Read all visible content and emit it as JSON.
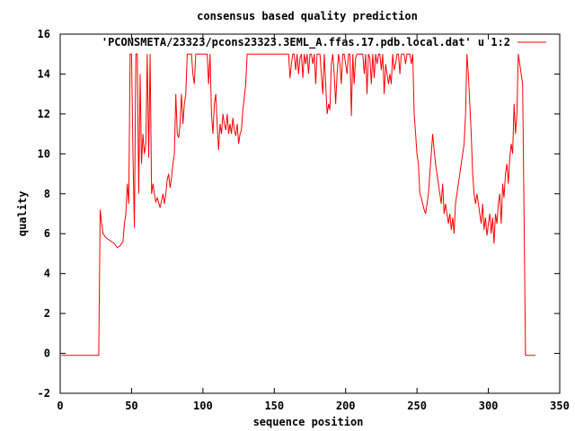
{
  "chart_data": {
    "type": "line",
    "title": "consensus based quality prediction",
    "xlabel": "sequence position",
    "ylabel": "quality",
    "xlim": [
      0,
      350
    ],
    "ylim": [
      -2,
      16
    ],
    "xticks": [
      "0",
      "50",
      "100",
      "150",
      "200",
      "250",
      "300",
      "350"
    ],
    "yticks": [
      "-2",
      "0",
      "2",
      "4",
      "6",
      "8",
      "10",
      "12",
      "14",
      "16"
    ],
    "grid": false,
    "legend_position": "top-right",
    "series": [
      {
        "name": "'PCONSMETA/23323/pcons23323.3EML_A.ffas.17.pdb.local.dat' u 1:2",
        "color": "#ff0000",
        "points": [
          [
            1,
            -0.1
          ],
          [
            27,
            -0.1
          ],
          [
            28,
            7.2
          ],
          [
            29,
            6.5
          ],
          [
            30,
            6.0
          ],
          [
            32,
            5.8
          ],
          [
            34,
            5.7
          ],
          [
            36,
            5.6
          ],
          [
            38,
            5.5
          ],
          [
            40,
            5.3
          ],
          [
            42,
            5.4
          ],
          [
            44,
            5.6
          ],
          [
            45,
            6.5
          ],
          [
            46,
            7.0
          ],
          [
            47,
            8.5
          ],
          [
            48,
            7.5
          ],
          [
            49,
            15.0
          ],
          [
            50,
            15.0
          ],
          [
            51,
            10.0
          ],
          [
            52,
            6.3
          ],
          [
            53,
            15.0
          ],
          [
            54,
            15.0
          ],
          [
            55,
            8.0
          ],
          [
            56,
            14.0
          ],
          [
            57,
            9.5
          ],
          [
            58,
            11.0
          ],
          [
            59,
            10.0
          ],
          [
            60,
            10.5
          ],
          [
            61,
            15.0
          ],
          [
            62,
            9.8
          ],
          [
            63,
            15.0
          ],
          [
            64,
            8.0
          ],
          [
            65,
            8.5
          ],
          [
            66,
            8.0
          ],
          [
            67,
            7.6
          ],
          [
            68,
            7.8
          ],
          [
            70,
            7.3
          ],
          [
            72,
            8.0
          ],
          [
            73,
            7.5
          ],
          [
            74,
            8.0
          ],
          [
            75,
            8.7
          ],
          [
            76,
            9.0
          ],
          [
            77,
            8.3
          ],
          [
            78,
            8.8
          ],
          [
            79,
            9.5
          ],
          [
            80,
            10.0
          ],
          [
            81,
            13.0
          ],
          [
            82,
            11.0
          ],
          [
            83,
            10.8
          ],
          [
            84,
            11.5
          ],
          [
            85,
            13.0
          ],
          [
            86,
            11.5
          ],
          [
            87,
            12.5
          ],
          [
            88,
            13.0
          ],
          [
            89,
            15.0
          ],
          [
            90,
            15.0
          ],
          [
            92,
            15.0
          ],
          [
            93,
            14.0
          ],
          [
            94,
            13.5
          ],
          [
            95,
            15.0
          ],
          [
            98,
            15.0
          ],
          [
            100,
            15.0
          ],
          [
            103,
            15.0
          ],
          [
            104,
            13.5
          ],
          [
            105,
            15.0
          ],
          [
            106,
            12.0
          ],
          [
            107,
            11.0
          ],
          [
            108,
            12.5
          ],
          [
            109,
            13.0
          ],
          [
            110,
            11.5
          ],
          [
            111,
            10.2
          ],
          [
            112,
            11.5
          ],
          [
            113,
            11.0
          ],
          [
            114,
            12.0
          ],
          [
            115,
            11.5
          ],
          [
            116,
            11.2
          ],
          [
            117,
            12.0
          ],
          [
            118,
            11.0
          ],
          [
            119,
            11.5
          ],
          [
            120,
            11.0
          ],
          [
            121,
            11.8
          ],
          [
            122,
            11.2
          ],
          [
            123,
            10.9
          ],
          [
            124,
            11.5
          ],
          [
            125,
            10.5
          ],
          [
            126,
            11.0
          ],
          [
            127,
            11.2
          ],
          [
            128,
            12.2
          ],
          [
            129,
            12.8
          ],
          [
            130,
            13.5
          ],
          [
            131,
            15.0
          ],
          [
            135,
            15.0
          ],
          [
            140,
            15.0
          ],
          [
            145,
            15.0
          ],
          [
            150,
            15.0
          ],
          [
            155,
            15.0
          ],
          [
            160,
            15.0
          ],
          [
            161,
            13.8
          ],
          [
            162,
            14.5
          ],
          [
            163,
            15.0
          ],
          [
            164,
            15.0
          ],
          [
            165,
            14.2
          ],
          [
            166,
            15.0
          ],
          [
            167,
            14.0
          ],
          [
            168,
            14.8
          ],
          [
            169,
            15.0
          ],
          [
            170,
            13.8
          ],
          [
            171,
            15.0
          ],
          [
            172,
            14.5
          ],
          [
            173,
            15.0
          ],
          [
            174,
            14.0
          ],
          [
            175,
            15.0
          ],
          [
            176,
            15.0
          ],
          [
            177,
            14.5
          ],
          [
            178,
            15.0
          ],
          [
            179,
            13.5
          ],
          [
            180,
            15.0
          ],
          [
            182,
            15.0
          ],
          [
            183,
            14.0
          ],
          [
            184,
            13.0
          ],
          [
            185,
            15.0
          ],
          [
            186,
            13.5
          ],
          [
            187,
            12.0
          ],
          [
            188,
            12.5
          ],
          [
            189,
            12.2
          ],
          [
            190,
            14.5
          ],
          [
            191,
            15.0
          ],
          [
            192,
            14.0
          ],
          [
            193,
            12.5
          ],
          [
            194,
            14.0
          ],
          [
            195,
            15.0
          ],
          [
            196,
            14.5
          ],
          [
            197,
            13.5
          ],
          [
            198,
            15.0
          ],
          [
            199,
            15.0
          ],
          [
            201,
            14.0
          ],
          [
            202,
            15.0
          ],
          [
            203,
            15.0
          ],
          [
            204,
            11.9
          ],
          [
            205,
            15.0
          ],
          [
            206,
            13.5
          ],
          [
            207,
            14.8
          ],
          [
            208,
            15.0
          ],
          [
            210,
            15.0
          ],
          [
            212,
            15.0
          ],
          [
            213,
            14.0
          ],
          [
            214,
            15.0
          ],
          [
            215,
            13.0
          ],
          [
            216,
            15.0
          ],
          [
            217,
            14.8
          ],
          [
            218,
            13.5
          ],
          [
            219,
            15.0
          ],
          [
            220,
            13.8
          ],
          [
            221,
            15.0
          ],
          [
            222,
            14.5
          ],
          [
            223,
            15.0
          ],
          [
            224,
            15.0
          ],
          [
            225,
            14.2
          ],
          [
            226,
            15.0
          ],
          [
            227,
            13.0
          ],
          [
            228,
            14.5
          ],
          [
            229,
            14.0
          ],
          [
            230,
            13.5
          ],
          [
            231,
            14.0
          ],
          [
            232,
            13.5
          ],
          [
            233,
            15.0
          ],
          [
            234,
            14.2
          ],
          [
            235,
            14.5
          ],
          [
            236,
            15.0
          ],
          [
            237,
            15.0
          ],
          [
            238,
            14.0
          ],
          [
            239,
            15.0
          ],
          [
            240,
            15.0
          ],
          [
            241,
            15.0
          ],
          [
            242,
            14.5
          ],
          [
            243,
            15.0
          ],
          [
            244,
            15.0
          ],
          [
            245,
            15.0
          ],
          [
            246,
            14.5
          ],
          [
            247,
            15.0
          ],
          [
            248,
            12.0
          ],
          [
            249,
            11.0
          ],
          [
            250,
            10.0
          ],
          [
            251,
            9.5
          ],
          [
            252,
            8.0
          ],
          [
            253,
            7.8
          ],
          [
            254,
            7.5
          ],
          [
            255,
            7.2
          ],
          [
            256,
            7.0
          ],
          [
            257,
            7.5
          ],
          [
            258,
            8.0
          ],
          [
            259,
            9.0
          ],
          [
            260,
            10.0
          ],
          [
            261,
            11.0
          ],
          [
            262,
            10.2
          ],
          [
            263,
            9.5
          ],
          [
            264,
            9.0
          ],
          [
            265,
            8.5
          ],
          [
            266,
            8.0
          ],
          [
            267,
            7.5
          ],
          [
            268,
            8.5
          ],
          [
            269,
            7.0
          ],
          [
            270,
            7.5
          ],
          [
            271,
            7.0
          ],
          [
            272,
            6.5
          ],
          [
            273,
            7.0
          ],
          [
            274,
            6.2
          ],
          [
            275,
            6.8
          ],
          [
            276,
            6.0
          ],
          [
            277,
            7.5
          ],
          [
            278,
            8.0
          ],
          [
            279,
            8.5
          ],
          [
            280,
            9.0
          ],
          [
            281,
            9.5
          ],
          [
            282,
            10.0
          ],
          [
            283,
            10.5
          ],
          [
            284,
            12.0
          ],
          [
            285,
            15.0
          ],
          [
            286,
            14.0
          ],
          [
            287,
            12.5
          ],
          [
            288,
            11.0
          ],
          [
            289,
            9.0
          ],
          [
            290,
            8.0
          ],
          [
            291,
            7.5
          ],
          [
            292,
            8.0
          ],
          [
            293,
            7.5
          ],
          [
            294,
            7.0
          ],
          [
            295,
            6.5
          ],
          [
            296,
            7.5
          ],
          [
            297,
            6.2
          ],
          [
            298,
            6.8
          ],
          [
            299,
            5.9
          ],
          [
            300,
            6.5
          ],
          [
            301,
            7.0
          ],
          [
            302,
            6.0
          ],
          [
            303,
            6.8
          ],
          [
            304,
            5.5
          ],
          [
            305,
            7.0
          ],
          [
            306,
            6.5
          ],
          [
            307,
            7.5
          ],
          [
            308,
            8.0
          ],
          [
            309,
            6.5
          ],
          [
            310,
            8.5
          ],
          [
            311,
            7.8
          ],
          [
            312,
            9.0
          ],
          [
            313,
            9.5
          ],
          [
            314,
            8.5
          ],
          [
            315,
            9.8
          ],
          [
            316,
            10.5
          ],
          [
            317,
            10.0
          ],
          [
            318,
            12.5
          ],
          [
            319,
            11.0
          ],
          [
            320,
            12.0
          ],
          [
            321,
            15.0
          ],
          [
            322,
            14.5
          ],
          [
            323,
            14.0
          ],
          [
            324,
            13.5
          ],
          [
            325,
            7.0
          ],
          [
            326,
            -0.1
          ],
          [
            333,
            -0.1
          ]
        ]
      }
    ]
  }
}
